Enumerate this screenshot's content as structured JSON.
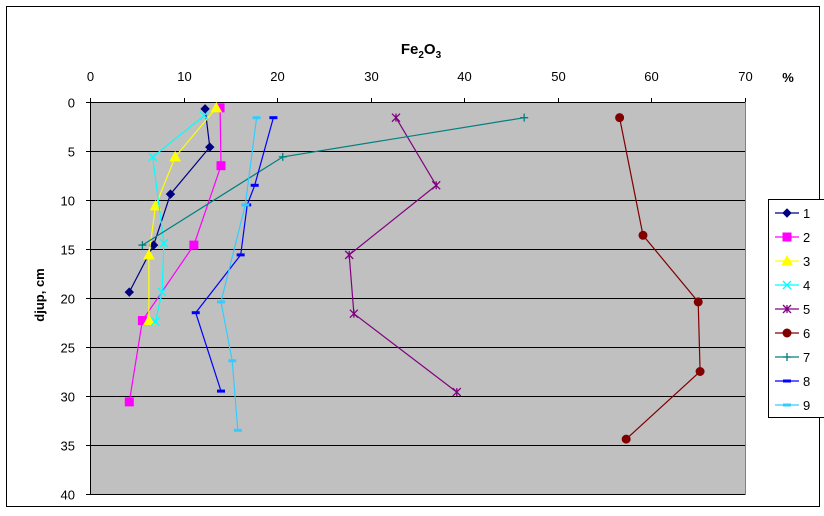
{
  "chart_data": {
    "type": "line",
    "title_main": "Fe",
    "title_sub": "2",
    "title_main2": "O",
    "title_sub2": "3",
    "x_unit": "%",
    "ylabel": "djup, cm",
    "x_axis_position": "top",
    "y_axis_reversed": true,
    "xlim": [
      0,
      70
    ],
    "ylim": [
      0,
      40
    ],
    "x_ticks": [
      0,
      10,
      20,
      30,
      40,
      50,
      60,
      70
    ],
    "y_ticks": [
      0,
      5,
      10,
      15,
      20,
      25,
      30,
      35,
      40
    ],
    "grid": "horizontal",
    "plot_background": "#c0c0c0",
    "legend_position": "right",
    "series": [
      {
        "name": "1",
        "color": "#000080",
        "marker": "diamond",
        "x": [
          12.3,
          12.8,
          8.6,
          6.8,
          4.2
        ],
        "y": [
          0.7,
          4.6,
          9.4,
          14.6,
          19.4
        ]
      },
      {
        "name": "2",
        "color": "#ff00ff",
        "marker": "square",
        "x": [
          13.9,
          14.0,
          11.1,
          5.6,
          4.2
        ],
        "y": [
          0.6,
          6.5,
          14.6,
          22.3,
          30.6
        ]
      },
      {
        "name": "3",
        "color": "#ffff00",
        "marker": "triangle",
        "x": [
          13.5,
          9.1,
          7.0,
          6.3,
          6.3
        ],
        "y": [
          0.6,
          5.6,
          10.6,
          15.6,
          22.3
        ]
      },
      {
        "name": "4",
        "color": "#00ffff",
        "marker": "x",
        "x": [
          12.2,
          6.7,
          7.9,
          7.7,
          7.0
        ],
        "y": [
          1.4,
          5.6,
          14.4,
          19.4,
          22.4
        ]
      },
      {
        "name": "5",
        "color": "#800080",
        "marker": "star",
        "x": [
          32.7,
          37.0,
          27.7,
          28.2,
          39.2
        ],
        "y": [
          1.6,
          8.5,
          15.6,
          21.6,
          29.6
        ]
      },
      {
        "name": "6",
        "color": "#800000",
        "marker": "circle",
        "x": [
          56.6,
          59.1,
          65.0,
          65.2,
          57.3
        ],
        "y": [
          1.6,
          13.6,
          20.4,
          27.5,
          34.4
        ]
      },
      {
        "name": "7",
        "color": "#008080",
        "marker": "plus",
        "x": [
          46.4,
          20.6,
          5.6
        ],
        "y": [
          1.6,
          5.6,
          14.6
        ]
      },
      {
        "name": "8",
        "color": "#0000ff",
        "marker": "dash",
        "x": [
          19.6,
          17.6,
          16.8,
          16.1,
          11.3,
          14.0
        ],
        "y": [
          1.6,
          8.5,
          10.5,
          15.6,
          21.5,
          29.5
        ]
      },
      {
        "name": "9",
        "color": "#33ccff",
        "marker": "dash",
        "x": [
          17.8,
          16.6,
          14.0,
          15.2,
          15.8
        ],
        "y": [
          1.6,
          10.5,
          20.4,
          26.4,
          33.5
        ]
      }
    ]
  }
}
